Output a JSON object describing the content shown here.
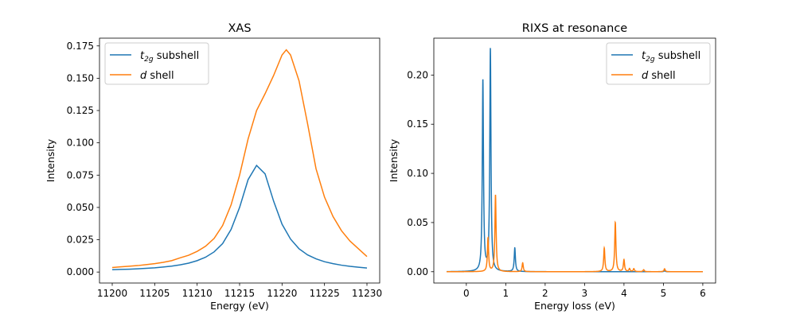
{
  "colors": {
    "t2g": "#1f77b4",
    "d": "#ff7f0e"
  },
  "chart_data": [
    {
      "type": "line",
      "title": "XAS",
      "xlabel": "Energy (eV)",
      "ylabel": "Intensity",
      "xlim": [
        11198.5,
        11231.5
      ],
      "ylim": [
        -0.0085,
        0.181
      ],
      "xticks": [
        11200,
        11205,
        11210,
        11215,
        11220,
        11225,
        11230
      ],
      "xtick_labels": [
        "11200",
        "11205",
        "11210",
        "11215",
        "11220",
        "11225",
        "11230"
      ],
      "yticks": [
        0,
        0.025,
        0.05,
        0.075,
        0.1,
        0.125,
        0.15,
        0.175
      ],
      "ytick_labels": [
        "0.000",
        "0.025",
        "0.050",
        "0.075",
        "0.100",
        "0.125",
        "0.150",
        "0.175"
      ],
      "legend_position": "upper-left",
      "grid": false,
      "series": [
        {
          "name": "t2g subshell",
          "legend_main": "t",
          "legend_sub": "2g",
          "legend_rest": " subshell",
          "color_key": "t2g",
          "x": [
            11200,
            11201,
            11202,
            11203,
            11204,
            11205,
            11206,
            11207,
            11208,
            11209,
            11210,
            11211,
            11212,
            11213,
            11214,
            11215,
            11216,
            11217,
            11218,
            11219,
            11220,
            11221,
            11222,
            11223,
            11224,
            11225,
            11226,
            11227,
            11228,
            11229,
            11230
          ],
          "y": [
            0.0018,
            0.002,
            0.0022,
            0.0025,
            0.0029,
            0.0033,
            0.0039,
            0.0046,
            0.0056,
            0.0069,
            0.0088,
            0.0115,
            0.0156,
            0.022,
            0.033,
            0.05,
            0.0715,
            0.0825,
            0.076,
            0.055,
            0.037,
            0.0255,
            0.018,
            0.0133,
            0.0102,
            0.008,
            0.0065,
            0.0053,
            0.0044,
            0.0037,
            0.0031
          ]
        },
        {
          "name": "d shell",
          "legend_main": "d",
          "legend_sub": "",
          "legend_rest": " shell",
          "color_key": "d",
          "x": [
            11200,
            11201,
            11202,
            11203,
            11204,
            11205,
            11206,
            11207,
            11208,
            11209,
            11210,
            11211,
            11212,
            11213,
            11214,
            11215,
            11216,
            11217,
            11218,
            11219,
            11220,
            11220.5,
            11221,
            11222,
            11223,
            11224,
            11225,
            11226,
            11227,
            11228,
            11229,
            11230
          ],
          "y": [
            0.0035,
            0.004,
            0.0045,
            0.005,
            0.0057,
            0.0065,
            0.0075,
            0.0088,
            0.011,
            0.013,
            0.016,
            0.02,
            0.026,
            0.036,
            0.052,
            0.075,
            0.103,
            0.125,
            0.138,
            0.152,
            0.168,
            0.172,
            0.168,
            0.148,
            0.115,
            0.08,
            0.058,
            0.043,
            0.032,
            0.024,
            0.018,
            0.012
          ]
        }
      ]
    },
    {
      "type": "line",
      "title": "RIXS at resonance",
      "xlabel": "Energy loss (eV)",
      "ylabel": "Intensity",
      "xlim": [
        -0.825,
        6.325
      ],
      "ylim": [
        -0.0115,
        0.2375
      ],
      "xticks": [
        0,
        1,
        2,
        3,
        4,
        5,
        6
      ],
      "xtick_labels": [
        "0",
        "1",
        "2",
        "3",
        "4",
        "5",
        "6"
      ],
      "yticks": [
        0,
        0.05,
        0.1,
        0.15,
        0.2
      ],
      "ytick_labels": [
        "0.00",
        "0.05",
        "0.10",
        "0.15",
        "0.20"
      ],
      "legend_position": "upper-right",
      "grid": false,
      "x_range": [
        -0.5,
        6
      ],
      "series": [
        {
          "name": "t2g subshell",
          "legend_main": "t",
          "legend_sub": "2g",
          "legend_rest": " subshell",
          "color_key": "t2g",
          "peaks": [
            {
              "energy": 0.42,
              "height": 0.194
            },
            {
              "energy": 0.61,
              "height": 0.226
            },
            {
              "energy": 1.23,
              "height": 0.024
            },
            {
              "energy": 5.03,
              "height": 0.001
            }
          ]
        },
        {
          "name": "d shell",
          "legend_main": "d",
          "legend_sub": "",
          "legend_rest": " shell",
          "color_key": "d",
          "peaks": [
            {
              "energy": 0.55,
              "height": 0.034
            },
            {
              "energy": 0.74,
              "height": 0.078
            },
            {
              "energy": 1.43,
              "height": 0.009
            },
            {
              "energy": 3.5,
              "height": 0.024
            },
            {
              "energy": 3.78,
              "height": 0.05
            },
            {
              "energy": 4.0,
              "height": 0.012
            },
            {
              "energy": 4.14,
              "height": 0.003
            },
            {
              "energy": 4.25,
              "height": 0.003
            },
            {
              "energy": 4.5,
              "height": 0.002
            },
            {
              "energy": 5.03,
              "height": 0.003
            }
          ]
        }
      ]
    }
  ]
}
